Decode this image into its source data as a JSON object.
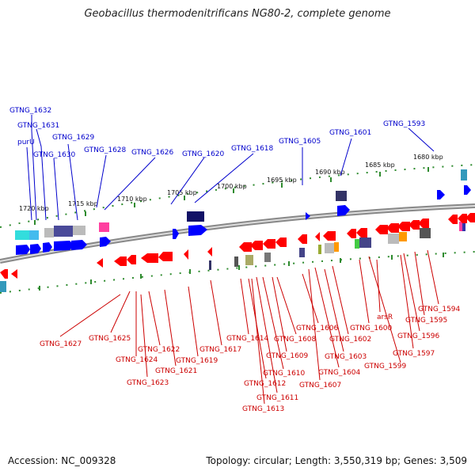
{
  "title": "Geobacillus thermodenitrificans NG80-2, complete genome",
  "accession": "Accession: NC_009328",
  "topology": "Topology: circular; Length: 3,550,319 bp; Genes: 3,509",
  "colors": {
    "forward": "#0000ff",
    "reverse": "#ff0000",
    "backbone": "#888888",
    "tick_major": "#2e8b2e",
    "tick_minor": "#2e8b2e"
  },
  "ticks": [
    "1720 kbp",
    "1715 kbp",
    "1710 kbp",
    "1705 kbp",
    "1700 kbp",
    "1695 kbp",
    "1690 kbp",
    "1685 kbp",
    "1680 kbp"
  ],
  "top_labels": [
    "GTNG_1632",
    "GTNG_1631",
    "purU",
    "GTNG_1629",
    "GTNG_1630",
    "GTNG_1628",
    "GTNG_1626",
    "GTNG_1620",
    "GTNG_1618",
    "GTNG_1605",
    "GTNG_1601",
    "GTNG_1593"
  ],
  "bottom_labels": [
    "GTNG_1627",
    "GTNG_1625",
    "GTNG_1624",
    "GTNG_1622",
    "GTNG_1623",
    "GTNG_1621",
    "GTNG_1619",
    "GTNG_1617",
    "GTNG_1614",
    "GTNG_1612",
    "GTNG_1613",
    "GTNG_1611",
    "GTNG_1610",
    "GTNG_1609",
    "GTNG_1608",
    "GTNG_1606",
    "GTNG_1607",
    "GTNG_1604",
    "GTNG_1603",
    "GTNG_1602",
    "GTNG_1600",
    "arsR",
    "GTNG_1599",
    "GTNG_1597",
    "GTNG_1596",
    "GTNG_1595",
    "GTNG_1594"
  ]
}
